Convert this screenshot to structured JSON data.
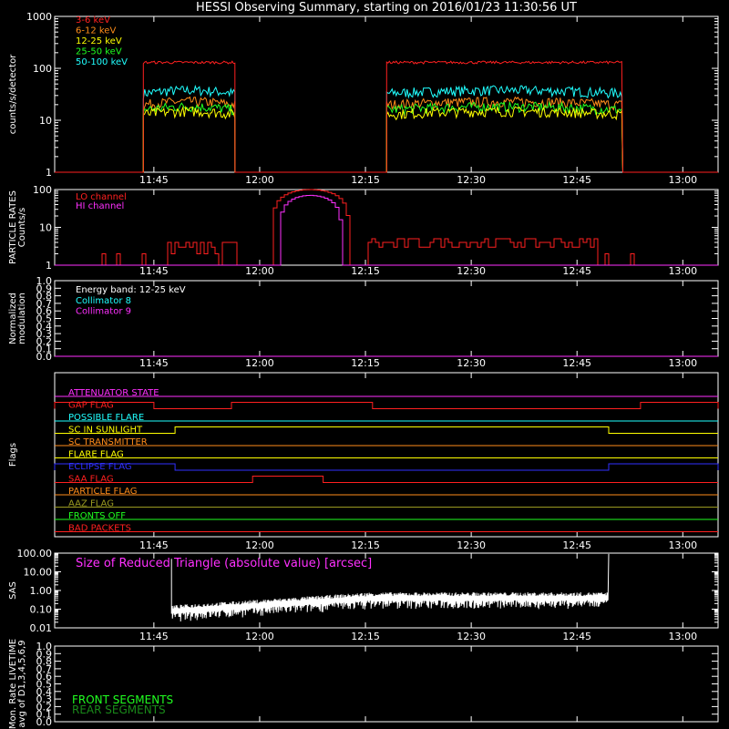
{
  "title": "HESSI Observing Summary, starting on 2016/01/23 11:30:56 UT",
  "time_ticks": [
    "11:45",
    "12:00",
    "12:15",
    "12:30",
    "12:45",
    "13:00"
  ],
  "chart_data": [
    {
      "type": "line",
      "panel": "count rates",
      "ylabel": "counts/s/detector",
      "yscale": "log",
      "ylim": [
        1,
        1000
      ],
      "yticks": [
        "1",
        "10",
        "100",
        "1000"
      ],
      "x_unit": "UT",
      "xlim": [
        "11:30:56",
        "13:05:00"
      ],
      "series": [
        {
          "name": "3-6 keV",
          "color": "#ff2020",
          "plateau": 130,
          "windows": [
            [
              "11:43:30",
              "11:56:30"
            ],
            [
              "12:18:00",
              "12:51:30"
            ]
          ]
        },
        {
          "name": "6-12 keV",
          "color": "#ff8c1a",
          "plateau": 20,
          "windows": [
            [
              "11:43:30",
              "11:56:30"
            ],
            [
              "12:18:00",
              "12:51:30"
            ]
          ]
        },
        {
          "name": "12-25 keV",
          "color": "#ffff00",
          "plateau": 13,
          "windows": [
            [
              "11:43:30",
              "11:56:30"
            ],
            [
              "12:18:00",
              "12:51:30"
            ]
          ]
        },
        {
          "name": "25-50 keV",
          "color": "#20ff20",
          "plateau": 16,
          "windows": [
            [
              "11:43:30",
              "11:56:30"
            ],
            [
              "12:18:00",
              "12:51:30"
            ]
          ]
        },
        {
          "name": "50-100 keV",
          "color": "#20ffff",
          "plateau": 33,
          "windows": [
            [
              "11:43:30",
              "11:56:30"
            ],
            [
              "12:18:00",
              "12:51:30"
            ]
          ]
        }
      ]
    },
    {
      "type": "line",
      "panel": "particle rates",
      "ylabel": [
        "PARTICLE RATES",
        "Counts/s"
      ],
      "yscale": "log",
      "ylim": [
        1,
        100
      ],
      "yticks": [
        "1",
        "10",
        "100"
      ],
      "series": [
        {
          "name": "LO channel",
          "color": "#ff2020",
          "peak": 100,
          "peak_time": "12:07:00"
        },
        {
          "name": "HI channel",
          "color": "#ff30ff",
          "peak": 70,
          "peak_time": "12:07:00"
        }
      ]
    },
    {
      "type": "line",
      "panel": "modulation",
      "ylabel": [
        "Normalized",
        "modulation"
      ],
      "ylim": [
        0,
        1
      ],
      "yticks": [
        "0.0",
        "0.1",
        "0.2",
        "0.3",
        "0.4",
        "0.5",
        "0.6",
        "0.7",
        "0.8",
        "0.9",
        "1.0"
      ],
      "energy_band": "Energy band: 12-25 keV",
      "series": [
        {
          "name": "Collimator 8",
          "color": "#20ffff",
          "values": [
            0
          ]
        },
        {
          "name": "Collimator 9",
          "color": "#ff30ff",
          "values": [
            0
          ]
        }
      ]
    },
    {
      "type": "line",
      "panel": "flags",
      "ylabel": "Flags",
      "series": [
        {
          "name": "ATTENUATOR STATE",
          "color": "#ff30ff"
        },
        {
          "name": "GAP FLAG",
          "color": "#ff2020",
          "on": [
            [
              "11:30:56",
              "11:45:00"
            ],
            [
              "11:56:00",
              "12:16:00"
            ],
            [
              "12:54:00",
              "13:05:00"
            ]
          ]
        },
        {
          "name": "POSSIBLE FLARE",
          "color": "#20ffff"
        },
        {
          "name": "SC IN SUNLIGHT",
          "color": "#ffff00",
          "on": [
            [
              "11:48:00",
              "12:49:30"
            ]
          ]
        },
        {
          "name": "SC TRANSMITTER",
          "color": "#ff8c1a"
        },
        {
          "name": "FLARE FLAG",
          "color": "#ffff00"
        },
        {
          "name": "ECLIPSE FLAG",
          "color": "#3030ff",
          "on": [
            [
              "11:30:56",
              "11:48:00"
            ],
            [
              "12:49:30",
              "13:05:00"
            ]
          ]
        },
        {
          "name": "SAA FLAG",
          "color": "#ff2020",
          "on": [
            [
              "11:59:00",
              "12:09:00"
            ]
          ]
        },
        {
          "name": "PARTICLE FLAG",
          "color": "#ff8c1a"
        },
        {
          "name": "AAZ FLAG",
          "color": "#9a9a20"
        },
        {
          "name": "FRONTS OFF",
          "color": "#20ff20"
        },
        {
          "name": "BAD PACKETS",
          "color": "#ff2020"
        }
      ]
    },
    {
      "type": "line",
      "panel": "SAS",
      "ylabel": "SAS",
      "yscale": "log",
      "ylim": [
        0.01,
        100
      ],
      "yticks": [
        "0.01",
        "0.10",
        "1.00",
        "10.00",
        "100.00"
      ],
      "annotation": "Size of Reduced Triangle (absolute value) [arcsec]",
      "series": [
        {
          "color": "#ffffff",
          "start": "11:47:30",
          "end": "12:49:30",
          "level_start": 0.1,
          "level_end": 0.5
        }
      ]
    },
    {
      "type": "line",
      "panel": "livetime",
      "ylabel": [
        "Mon. Rate LIVETIME",
        "avg of D1,3,4,5,6,9"
      ],
      "ylim": [
        0,
        1
      ],
      "yticks": [
        "0.0",
        "0.1",
        "0.2",
        "0.3",
        "0.4",
        "0.5",
        "0.6",
        "0.7",
        "0.8",
        "0.9",
        "1.0"
      ],
      "series": [
        {
          "name": "FRONT SEGMENTS",
          "color": "#20ff20"
        },
        {
          "name": "REAR SEGMENTS",
          "color": "#1a8a1a"
        }
      ]
    }
  ]
}
